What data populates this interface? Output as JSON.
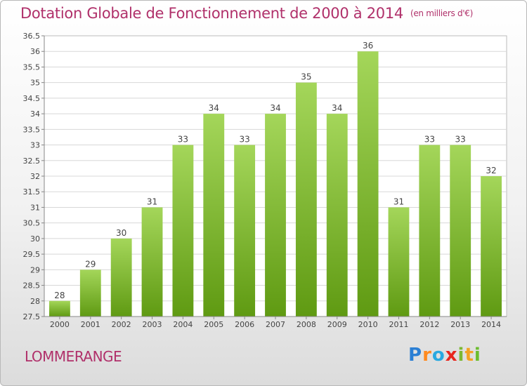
{
  "title": "Dotation Globale de Fonctionnement de 2000 à 2014",
  "unit": "(en milliers d'€)",
  "commune": "LOMMERANGE",
  "logo": {
    "text": "Proxiti",
    "letters": [
      "P",
      "r",
      "o",
      "x",
      "i",
      "t",
      "i"
    ],
    "letter_colors": [
      "#2b7fd4",
      "#ff8a1f",
      "#29a9e0",
      "#e8261e",
      "#7cb832",
      "#f4a223",
      "#6cbd2e"
    ]
  },
  "colors": {
    "title": "#b0306a",
    "bar_top": "#a4d65a",
    "bar_bottom": "#5f9a12",
    "grid": "#d8d8d8",
    "text": "#444444"
  },
  "chart_data": {
    "type": "bar",
    "categories": [
      "2000",
      "2001",
      "2002",
      "2003",
      "2004",
      "2005",
      "2006",
      "2007",
      "2008",
      "2009",
      "2010",
      "2011",
      "2012",
      "2013",
      "2014"
    ],
    "values": [
      28,
      29,
      30,
      31,
      33,
      34,
      33,
      34,
      35,
      34,
      36,
      31,
      33,
      33,
      32
    ],
    "data_labels": [
      "28",
      "29",
      "30",
      "31",
      "33",
      "34",
      "33",
      "34",
      "35",
      "34",
      "36",
      "31",
      "33",
      "33",
      "32"
    ],
    "ylim": [
      27.5,
      36.5
    ],
    "yticks": [
      "27.5",
      "28",
      "28.5",
      "29",
      "29.5",
      "30",
      "30.5",
      "31",
      "31.5",
      "32",
      "32.5",
      "33",
      "33.5",
      "34",
      "34.5",
      "35",
      "35.5",
      "36",
      "36.5"
    ],
    "grid": true,
    "legend": "none"
  }
}
